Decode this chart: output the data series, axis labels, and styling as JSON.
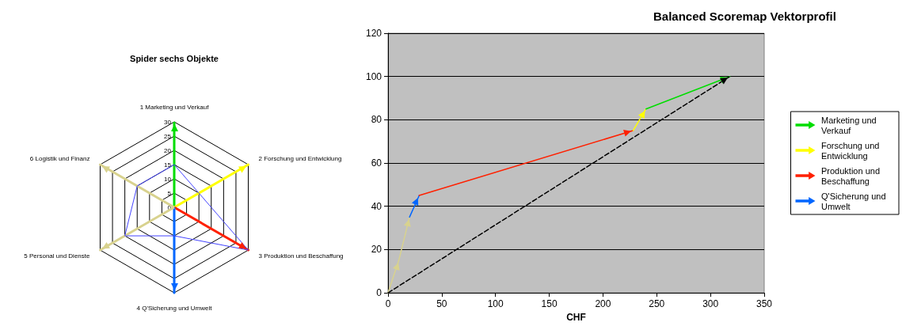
{
  "chart_data": [
    {
      "type": "radar",
      "title": "Spider sechs Objekte",
      "categories": [
        "1 Marketing und Verkauf",
        "2 Forschung und Entwicklung",
        "3 Produktion und Beschaffung",
        "4 Q'Sicherung und Umwelt",
        "5 Personal und Dienste",
        "6 Logistik und Finanz"
      ],
      "ylim": [
        0,
        30
      ],
      "yticks": [
        0,
        5,
        10,
        15,
        20,
        25,
        30
      ],
      "series": [
        {
          "color": "#00dd00",
          "values": [
            30,
            0,
            0,
            0,
            0,
            0
          ]
        },
        {
          "color": "#ffff00",
          "values": [
            0,
            30,
            0,
            0,
            0,
            0
          ]
        },
        {
          "color": "#ff2000",
          "values": [
            0,
            0,
            30,
            0,
            0,
            0
          ]
        },
        {
          "color": "#0066ff",
          "values": [
            0,
            0,
            0,
            30,
            0,
            0
          ]
        },
        {
          "color": "#d8d28e",
          "values": [
            0,
            0,
            0,
            0,
            30,
            0
          ]
        },
        {
          "color": "#d8d28e",
          "values": [
            0,
            0,
            0,
            0,
            0,
            30
          ]
        },
        {
          "color": "#4444ff",
          "values": [
            15,
            10,
            30,
            10,
            20,
            15
          ]
        }
      ]
    },
    {
      "type": "line",
      "title": "Balanced Scoremap Vektorprofil",
      "xlabel": "CHF",
      "xlim": [
        0,
        350
      ],
      "xticks": [
        0,
        50,
        100,
        150,
        200,
        250,
        300,
        350
      ],
      "ylim": [
        0,
        120
      ],
      "yticks": [
        0,
        20,
        40,
        60,
        80,
        100,
        120
      ],
      "grid": "y",
      "legend": "right",
      "series": [
        {
          "color": "#d8d28e",
          "x": [
            0,
            10,
            20
          ],
          "values": [
            0,
            15,
            35
          ]
        },
        {
          "name": "Q'Sicherung und Umwelt",
          "color": "#0066ff",
          "x": [
            20,
            29
          ],
          "values": [
            35,
            45
          ]
        },
        {
          "name": "Produktion und Beschaffung",
          "color": "#ff2000",
          "x": [
            29,
            228
          ],
          "values": [
            45,
            75
          ]
        },
        {
          "name": "Forschung und Entwicklung",
          "color": "#ffff00",
          "x": [
            228,
            240
          ],
          "values": [
            75,
            85
          ]
        },
        {
          "name": "Marketing und Verkauf",
          "color": "#00dd00",
          "x": [
            240,
            318
          ],
          "values": [
            85,
            100
          ]
        },
        {
          "color": "#000000",
          "line_style": "dashed",
          "x": [
            0,
            318
          ],
          "values": [
            0,
            100
          ]
        }
      ]
    }
  ]
}
